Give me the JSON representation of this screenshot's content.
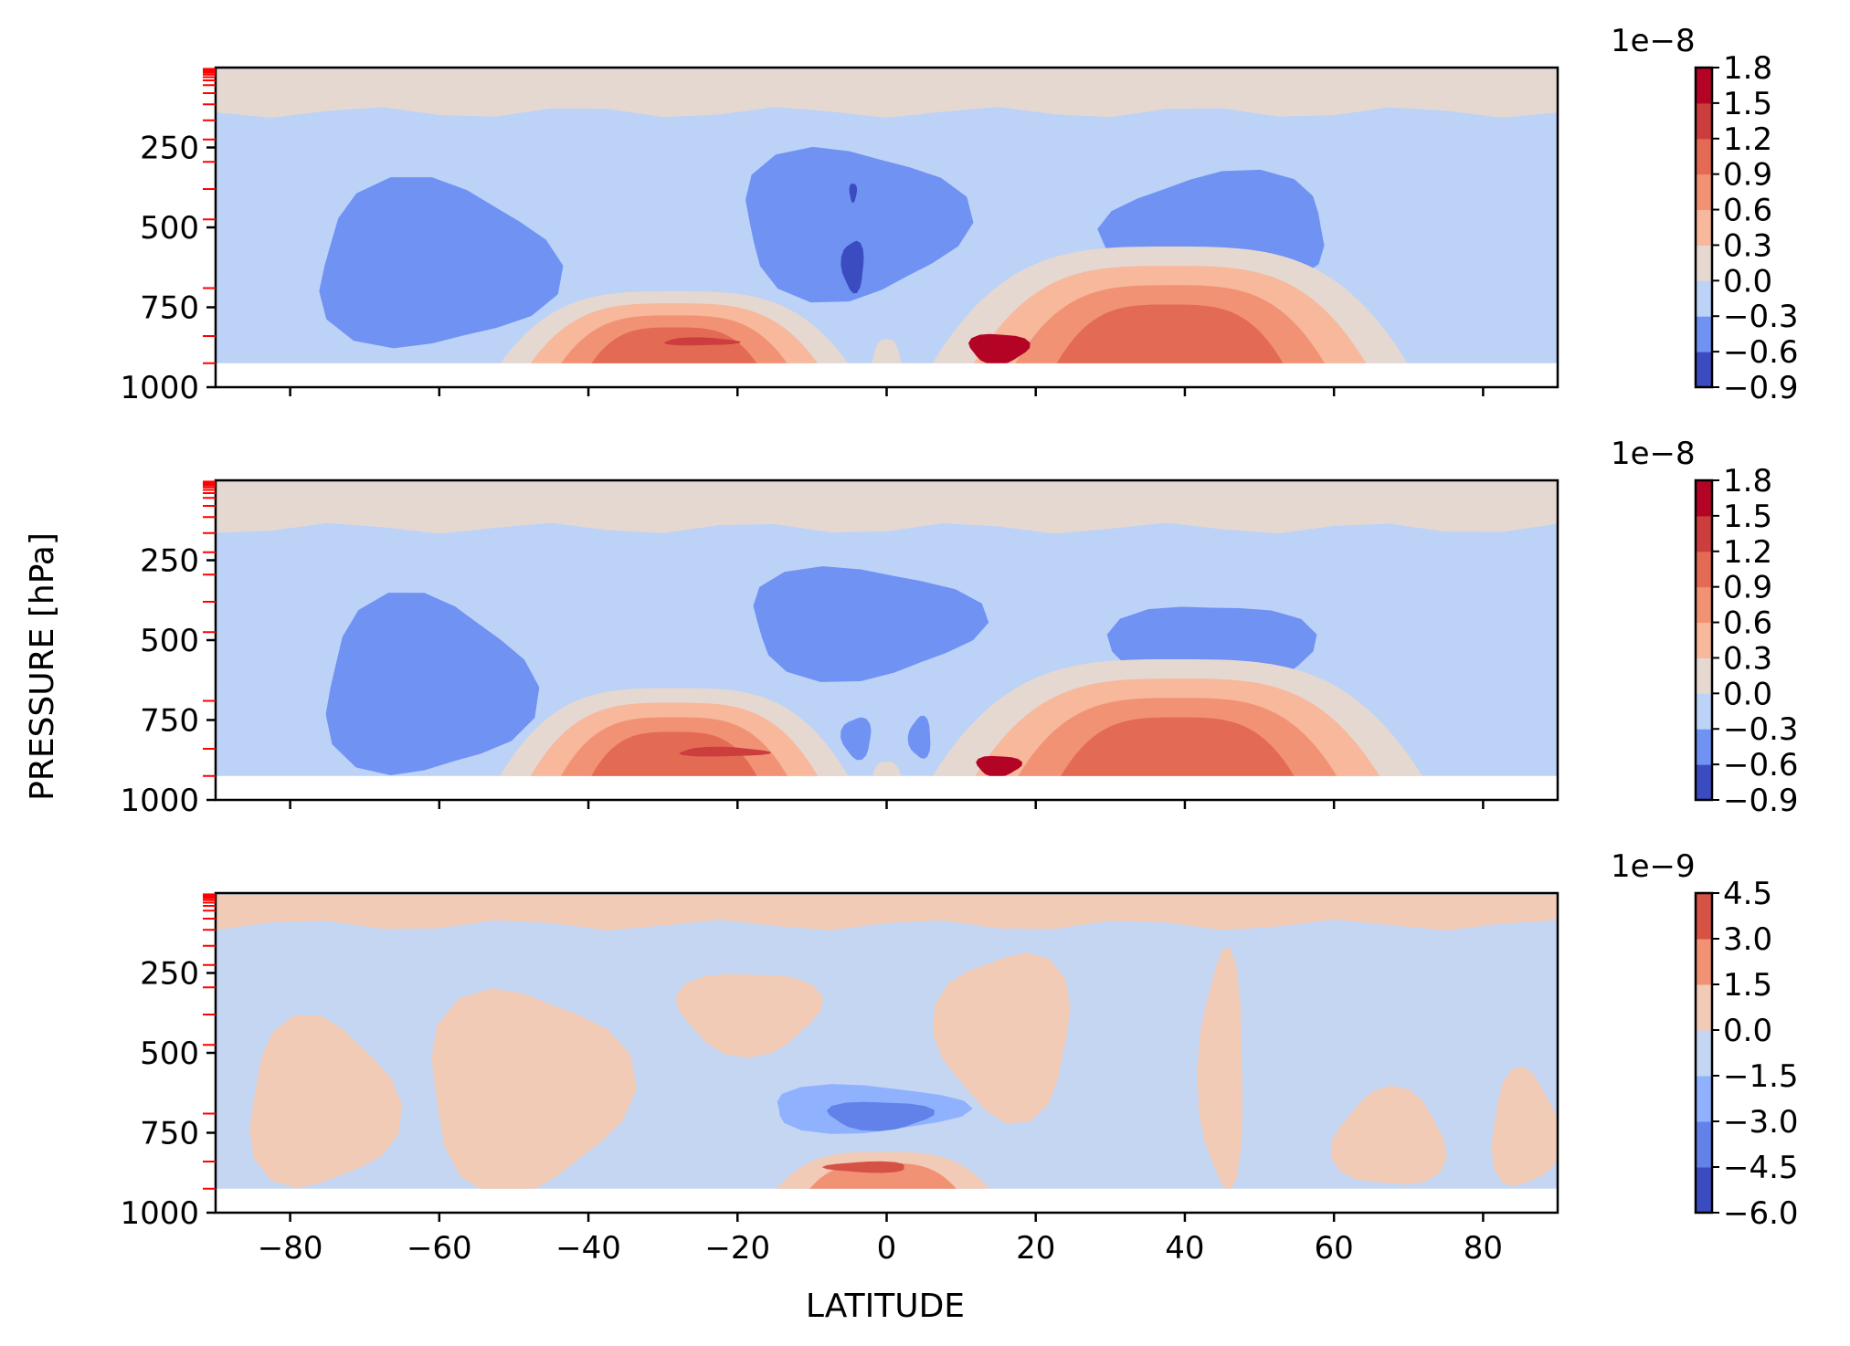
{
  "chart_data": {
    "type": "heatmap",
    "subtype": "filled-contour",
    "xlabel": "LATITUDE",
    "ylabel": "PRESSURE [hPa]",
    "xlim": [
      -90,
      90
    ],
    "ylim": [
      1000,
      0
    ],
    "x_ticks": [
      -80,
      -60,
      -40,
      -20,
      0,
      20,
      40,
      60,
      80
    ],
    "x_tick_labels": [
      "−80",
      "−60",
      "−40",
      "−20",
      "0",
      "20",
      "40",
      "60",
      "80"
    ],
    "y_ticks": [
      250,
      500,
      750,
      1000
    ],
    "y_tick_labels": [
      "250",
      "500",
      "750",
      "1000"
    ],
    "model_levels_hPa": [
      4,
      8,
      12,
      16,
      22,
      30,
      40,
      55,
      80,
      115,
      165,
      225,
      295,
      380,
      475,
      690,
      840,
      925
    ],
    "model_level_marker_color": "#ff0000",
    "panels": [
      {
        "colorbar_multiplier": "1e−8",
        "levels": [
          -0.9,
          -0.6,
          -0.3,
          0.0,
          0.3,
          0.6,
          0.9,
          1.2,
          1.5,
          1.8
        ],
        "level_labels": [
          "−0.9",
          "−0.6",
          "−0.3",
          "0.0",
          "0.3",
          "0.6",
          "0.9",
          "1.2",
          "1.5",
          "1.8"
        ],
        "colors": [
          "#3b4cc0",
          "#6f92f3",
          "#bcd2f7",
          "#e5d8d1",
          "#f7b89c",
          "#f29274",
          "#e36a53",
          "#cc3d3e",
          "#b40426"
        ],
        "features": [
          {
            "kind": "band",
            "y": [
              5,
              140
            ],
            "level": 3
          },
          {
            "kind": "blob",
            "lat": [
              -77,
              -45
            ],
            "p": [
              360,
              880
            ],
            "level": 1
          },
          {
            "kind": "blob",
            "lat": [
              -20,
              10
            ],
            "p": [
              250,
              720
            ],
            "level": 1
          },
          {
            "kind": "blob",
            "lat": [
              -5,
              -4
            ],
            "p": [
              360,
              420
            ],
            "level": 0
          },
          {
            "kind": "blob",
            "lat": [
              -6,
              -3
            ],
            "p": [
              540,
              700
            ],
            "level": 0
          },
          {
            "kind": "blob",
            "lat": [
              30,
              60
            ],
            "p": [
              330,
              680
            ],
            "level": 1
          },
          {
            "kind": "mound",
            "lat": [
              -52,
              -5
            ],
            "top": 700,
            "levels": [
              3,
              4,
              5,
              6
            ]
          },
          {
            "kind": "blob",
            "lat": [
              -30,
              -20
            ],
            "p": [
              845,
              870
            ],
            "level": 7
          },
          {
            "kind": "mound",
            "lat": [
              6,
              70
            ],
            "top": 560,
            "levels": [
              3,
              4,
              5,
              6
            ]
          },
          {
            "kind": "blob",
            "lat": [
              11,
              19
            ],
            "p": [
              830,
              925
            ],
            "level": 8
          },
          {
            "kind": "mound",
            "lat": [
              -2,
              2
            ],
            "top": 850,
            "levels": [
              3
            ]
          }
        ]
      },
      {
        "colorbar_multiplier": "1e−8",
        "levels": [
          -0.9,
          -0.6,
          -0.3,
          0.0,
          0.3,
          0.6,
          0.9,
          1.2,
          1.5,
          1.8
        ],
        "level_labels": [
          "−0.9",
          "−0.6",
          "−0.3",
          "0.0",
          "0.3",
          "0.6",
          "0.9",
          "1.2",
          "1.5",
          "1.8"
        ],
        "colors": [
          "#3b4cc0",
          "#6f92f3",
          "#bcd2f7",
          "#e5d8d1",
          "#f7b89c",
          "#f29274",
          "#e36a53",
          "#cc3d3e",
          "#b40426"
        ],
        "features": [
          {
            "kind": "band",
            "y": [
              5,
              150
            ],
            "level": 3
          },
          {
            "kind": "blob",
            "lat": [
              -76,
              -48
            ],
            "p": [
              370,
              925
            ],
            "level": 1
          },
          {
            "kind": "blob",
            "lat": [
              -19,
              12
            ],
            "p": [
              270,
              620
            ],
            "level": 1
          },
          {
            "kind": "blob",
            "lat": [
              30,
              57
            ],
            "p": [
              380,
              690
            ],
            "level": 1
          },
          {
            "kind": "blob",
            "lat": [
              -6,
              -2
            ],
            "p": [
              740,
              870
            ],
            "level": 1
          },
          {
            "kind": "blob",
            "lat": [
              3,
              6
            ],
            "p": [
              740,
              870
            ],
            "level": 1
          },
          {
            "kind": "mound",
            "lat": [
              -52,
              -5
            ],
            "top": 650,
            "levels": [
              3,
              4,
              5,
              6
            ]
          },
          {
            "kind": "blob",
            "lat": [
              -28,
              -16
            ],
            "p": [
              835,
              865
            ],
            "level": 7
          },
          {
            "kind": "mound",
            "lat": [
              6,
              72
            ],
            "top": 560,
            "levels": [
              3,
              4,
              5,
              6
            ]
          },
          {
            "kind": "blob",
            "lat": [
              12,
              18
            ],
            "p": [
              860,
              925
            ],
            "level": 8
          },
          {
            "kind": "mound",
            "lat": [
              -2,
              2
            ],
            "top": 880,
            "levels": [
              3
            ]
          }
        ]
      },
      {
        "colorbar_multiplier": "1e−9",
        "levels": [
          -6.0,
          -4.5,
          -3.0,
          -1.5,
          0.0,
          1.5,
          3.0,
          4.5
        ],
        "level_labels": [
          "−6.0",
          "−4.5",
          "−3.0",
          "−1.5",
          "0.0",
          "1.5",
          "3.0",
          "4.5"
        ],
        "colors": [
          "#3b4cc0",
          "#6282ea",
          "#90b2fe",
          "#c5d6f2",
          "#f2cbb7",
          "#f29274",
          "#d65244"
        ],
        "features": [
          {
            "kind": "band",
            "y": [
              5,
              100
            ],
            "level": 4
          },
          {
            "kind": "blob",
            "lat": [
              -86,
              -66
            ],
            "p": [
              400,
              925
            ],
            "level": 4
          },
          {
            "kind": "blob",
            "lat": [
              -62,
              -35
            ],
            "p": [
              300,
              925
            ],
            "level": 4
          },
          {
            "kind": "blob",
            "lat": [
              -28,
              -9
            ],
            "p": [
              240,
              500
            ],
            "level": 4
          },
          {
            "kind": "blob",
            "lat": [
              7,
              25
            ],
            "p": [
              180,
              700
            ],
            "level": 4
          },
          {
            "kind": "blob",
            "lat": [
              42,
              48
            ],
            "p": [
              190,
              925
            ],
            "level": 4
          },
          {
            "kind": "blob",
            "lat": [
              60,
              75
            ],
            "p": [
              620,
              925
            ],
            "level": 4
          },
          {
            "kind": "blob",
            "lat": [
              81,
              90
            ],
            "p": [
              560,
              925
            ],
            "level": 4
          },
          {
            "kind": "blob",
            "lat": [
              -16,
              10
            ],
            "p": [
              600,
              750
            ],
            "level": 2
          },
          {
            "kind": "blob",
            "lat": [
              -8,
              6
            ],
            "p": [
              650,
              740
            ],
            "level": 1
          },
          {
            "kind": "mound",
            "lat": [
              -15,
              14
            ],
            "top": 810,
            "levels": [
              4,
              5
            ]
          },
          {
            "kind": "blob",
            "lat": [
              -8,
              3
            ],
            "p": [
              840,
              875
            ],
            "level": 6
          }
        ]
      }
    ]
  }
}
